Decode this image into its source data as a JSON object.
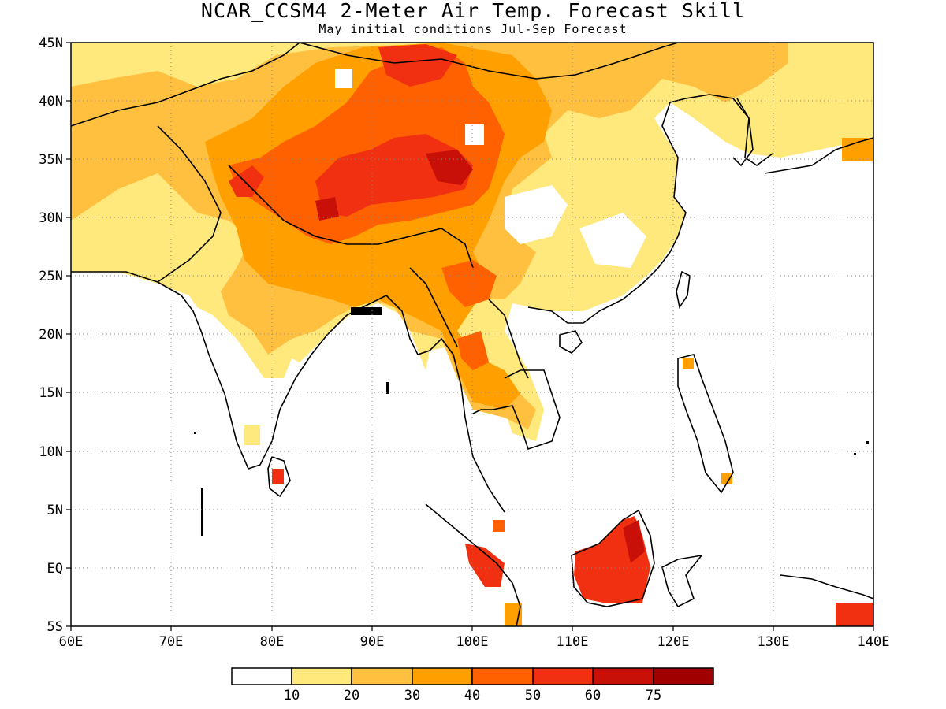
{
  "title": "NCAR_CCSM4 2-Meter Air Temp. Forecast Skill",
  "subtitle": "May initial conditions  Jul-Sep Forecast",
  "map": {
    "lon_range": [
      60,
      140
    ],
    "lat_range": [
      -5,
      45
    ],
    "gridlines": "dotted",
    "x_ticks": [
      "60E",
      "70E",
      "80E",
      "90E",
      "100E",
      "110E",
      "120E",
      "130E",
      "140E"
    ],
    "y_ticks": [
      "45N",
      "40N",
      "35N",
      "30N",
      "25N",
      "20N",
      "15N",
      "10N",
      "5N",
      "EQ",
      "5S"
    ]
  },
  "colorbar": {
    "colors": [
      "#ffffff",
      "#ffe87c",
      "#ffc040",
      "#ffa000",
      "#ff6000",
      "#f03010",
      "#c81008",
      "#a00000"
    ],
    "labels": [
      "10",
      "20",
      "30",
      "40",
      "50",
      "60",
      "75"
    ]
  }
}
